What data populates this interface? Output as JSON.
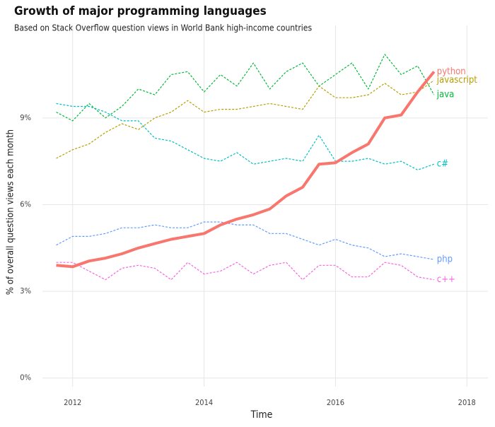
{
  "chart_data": {
    "type": "line",
    "title": "Growth of major programming languages",
    "subtitle": "Based on Stack Overflow question views in World Bank high-income countries",
    "x_label": "Time",
    "y_label": "% of overall question views each month",
    "x": [
      2011.75,
      2012.0,
      2012.25,
      2012.5,
      2012.75,
      2013.0,
      2013.25,
      2013.5,
      2013.75,
      2014.0,
      2014.25,
      2014.5,
      2014.75,
      2015.0,
      2015.25,
      2015.5,
      2015.75,
      2016.0,
      2016.25,
      2016.5,
      2016.75,
      2017.0,
      2017.25,
      2017.5
    ],
    "series": [
      {
        "name": "python",
        "color": "#F8766D",
        "values": [
          3.9,
          3.85,
          4.05,
          4.15,
          4.3,
          4.5,
          4.65,
          4.8,
          4.9,
          5.0,
          5.3,
          5.5,
          5.65,
          5.85,
          6.3,
          6.6,
          7.4,
          7.45,
          7.8,
          8.1,
          9.0,
          9.1,
          9.9,
          10.6
        ]
      },
      {
        "name": "javascript",
        "color": "#B79F00",
        "values": [
          7.6,
          7.9,
          8.1,
          8.5,
          8.8,
          8.6,
          9.0,
          9.2,
          9.6,
          9.2,
          9.3,
          9.3,
          9.4,
          9.5,
          9.4,
          9.3,
          10.1,
          9.7,
          9.7,
          9.8,
          10.2,
          9.8,
          9.9,
          10.3
        ]
      },
      {
        "name": "java",
        "color": "#00BA38",
        "values": [
          9.2,
          8.9,
          9.5,
          9.0,
          9.4,
          10.0,
          9.8,
          10.5,
          10.6,
          9.9,
          10.5,
          10.1,
          10.9,
          10.0,
          10.6,
          10.9,
          10.1,
          10.5,
          10.9,
          10.0,
          11.2,
          10.5,
          10.8,
          9.8
        ]
      },
      {
        "name": "c#",
        "color": "#00BFC4",
        "values": [
          9.5,
          9.4,
          9.4,
          9.2,
          8.9,
          8.9,
          8.3,
          8.2,
          7.9,
          7.6,
          7.5,
          7.8,
          7.4,
          7.5,
          7.6,
          7.5,
          8.4,
          7.5,
          7.5,
          7.6,
          7.4,
          7.5,
          7.2,
          7.4
        ]
      },
      {
        "name": "php",
        "color": "#619CFF",
        "values": [
          4.6,
          4.9,
          4.9,
          5.0,
          5.2,
          5.2,
          5.3,
          5.2,
          5.2,
          5.4,
          5.4,
          5.3,
          5.3,
          5.0,
          5.0,
          4.8,
          4.6,
          4.8,
          4.6,
          4.5,
          4.2,
          4.3,
          4.2,
          4.1
        ]
      },
      {
        "name": "c++",
        "color": "#F564E3",
        "values": [
          4.0,
          4.0,
          3.7,
          3.4,
          3.8,
          3.9,
          3.8,
          3.4,
          4.0,
          3.6,
          3.7,
          4.0,
          3.6,
          3.9,
          4.0,
          3.4,
          3.9,
          3.9,
          3.5,
          3.5,
          4.0,
          3.9,
          3.5,
          3.4
        ]
      }
    ],
    "xlim": [
      2011.54,
      2018.32
    ],
    "ylim": [
      -0.3,
      12.2
    ],
    "xticks": [
      2012,
      2014,
      2016,
      2018
    ],
    "yticks": [
      {
        "value": 0,
        "label": "0%"
      },
      {
        "value": 3,
        "label": "3%"
      },
      {
        "value": 6,
        "label": "6%"
      },
      {
        "value": 9,
        "label": "9%"
      }
    ],
    "grid": true,
    "highlight": "python"
  }
}
